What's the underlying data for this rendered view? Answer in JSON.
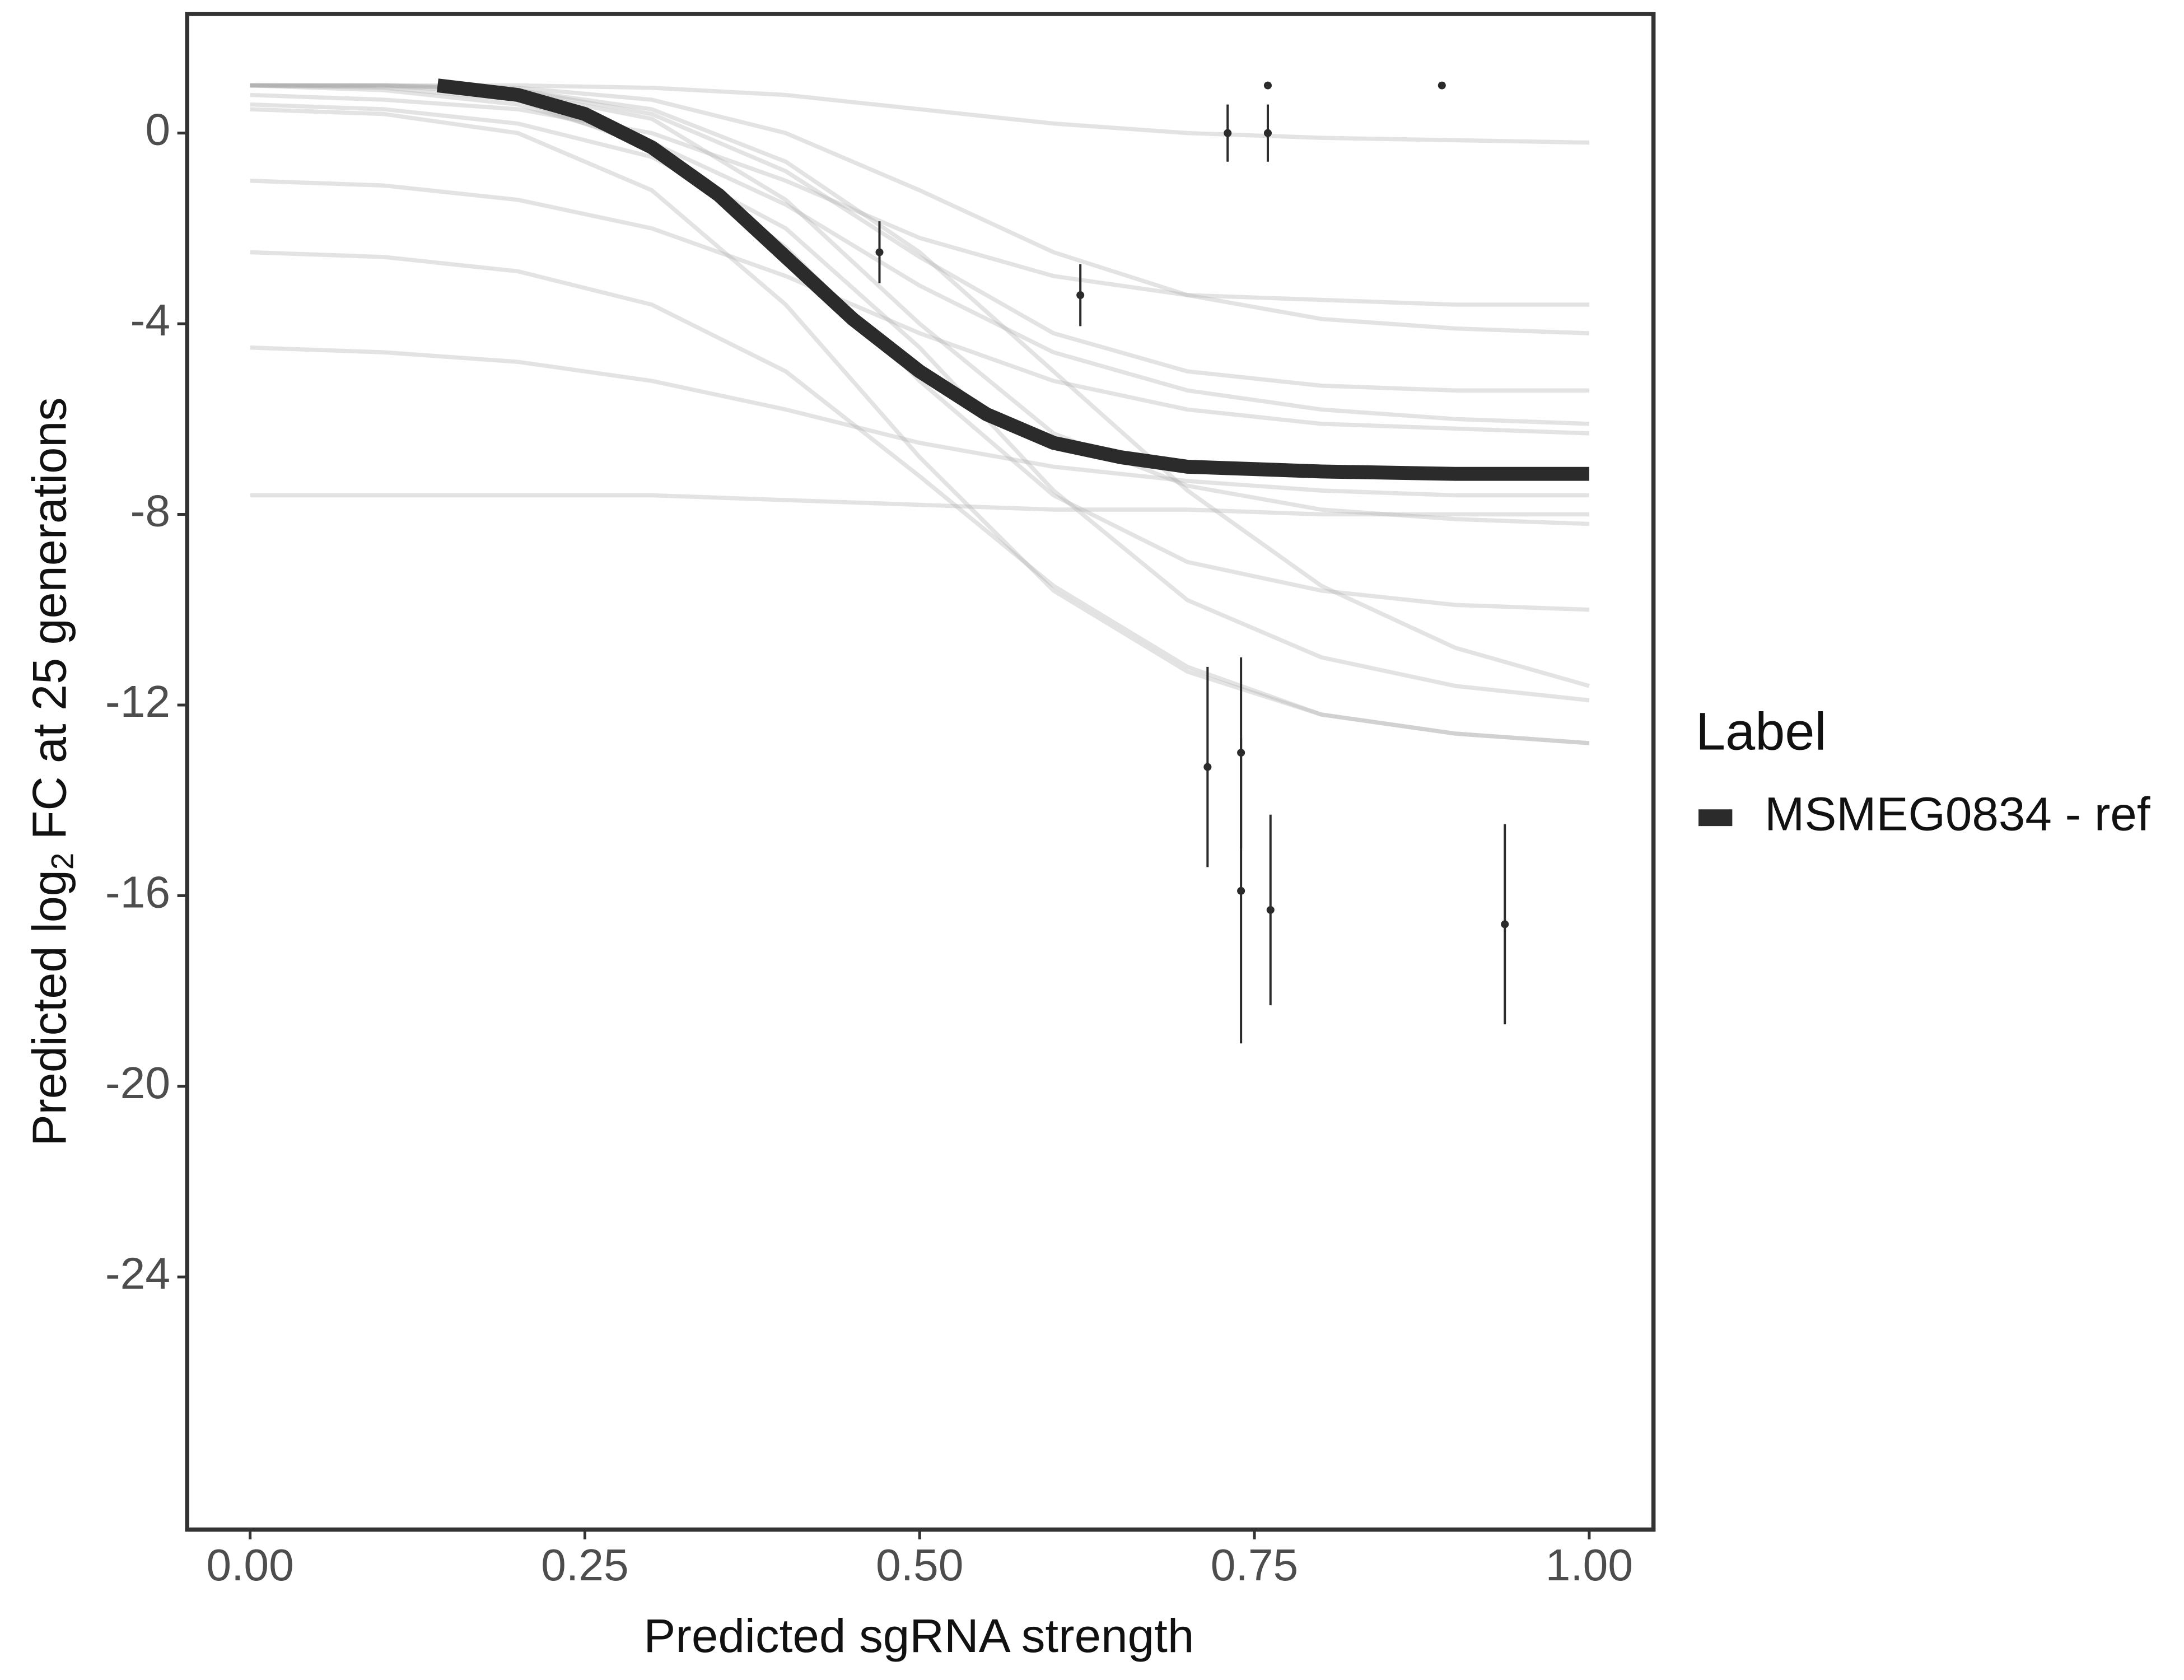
{
  "chart_data": {
    "type": "scatter",
    "xlabel": "Predicted sgRNA strength",
    "ylabel": [
      "Predicted  log",
      "2",
      " FC at 25 generations"
    ],
    "legend_title": "Label",
    "xlim": [
      -0.047,
      1.048
    ],
    "ylim": [
      -29.3,
      2.5
    ],
    "xticks": [
      {
        "value": 0,
        "label": "0.00"
      },
      {
        "value": 0.25,
        "label": "0.25"
      },
      {
        "value": 0.5,
        "label": "0.50"
      },
      {
        "value": 0.75,
        "label": "0.75"
      },
      {
        "value": 1,
        "label": "1.00"
      }
    ],
    "yticks": [
      -24,
      -20,
      -16,
      -12,
      -8,
      -4,
      0
    ],
    "grid": false,
    "draws": {
      "color": "#b0b0b0",
      "x": [
        0,
        0.1,
        0.2,
        0.3,
        0.4,
        0.5,
        0.6,
        0.7,
        0.8,
        0.9,
        1
      ],
      "values": [
        [
          1,
          0.9,
          0.6,
          -0.2,
          -1.5,
          -3.2,
          -4.6,
          -5.4,
          -5.8,
          -6,
          -6.1
        ],
        [
          1,
          1,
          0.9,
          0.4,
          -0.8,
          -2.6,
          -4.2,
          -5,
          -5.3,
          -5.4,
          -5.4
        ],
        [
          1,
          0.95,
          0.7,
          -0.3,
          -2.4,
          -5.2,
          -7.6,
          -9,
          -9.6,
          -9.9,
          -10
        ],
        [
          0.8,
          0.7,
          0.5,
          0,
          -1,
          -2.2,
          -3,
          -3.4,
          -3.5,
          -3.6,
          -3.6
        ],
        [
          1,
          1,
          0.95,
          0.7,
          0,
          -1.2,
          -2.5,
          -3.4,
          -3.9,
          -4.1,
          -4.2
        ],
        [
          0.6,
          0.5,
          0.2,
          -0.5,
          -2,
          -4.5,
          -7.5,
          -9.8,
          -11,
          -11.6,
          -11.9
        ],
        [
          1,
          0.98,
          0.85,
          0.3,
          -1.4,
          -4,
          -6.3,
          -7.4,
          -7.9,
          -8.1,
          -8.2
        ],
        [
          -1,
          -1.1,
          -1.4,
          -2,
          -3,
          -4.2,
          -5.2,
          -5.8,
          -6.1,
          -6.2,
          -6.3
        ],
        [
          1,
          1,
          0.9,
          0.5,
          -0.6,
          -2.5,
          -5,
          -7.5,
          -9.5,
          -10.8,
          -11.6
        ],
        [
          -2.5,
          -2.6,
          -2.9,
          -3.6,
          -5,
          -7.2,
          -9.5,
          -11.2,
          -12.2,
          -12.6,
          -12.8
        ],
        [
          1,
          1,
          1,
          0.95,
          0.8,
          0.5,
          0.2,
          0,
          -0.1,
          -0.15,
          -0.2
        ],
        [
          0.5,
          0.4,
          0,
          -1.2,
          -3.6,
          -6.8,
          -9.6,
          -11.3,
          -12.2,
          -12.6,
          -12.8
        ],
        [
          -4.5,
          -4.6,
          -4.8,
          -5.2,
          -5.8,
          -6.5,
          -7,
          -7.3,
          -7.5,
          -7.6,
          -7.6
        ],
        [
          -7.6,
          -7.6,
          -7.6,
          -7.6,
          -7.7,
          -7.8,
          -7.9,
          -7.9,
          -8,
          -8,
          -8
        ]
      ]
    },
    "series": [
      {
        "name": "MSMEG0834 - ref",
        "color": "#2b2b2b",
        "x": [
          0.14,
          0.2,
          0.25,
          0.3,
          0.35,
          0.4,
          0.45,
          0.5,
          0.55,
          0.6,
          0.65,
          0.7,
          0.8,
          0.9,
          1.0
        ],
        "values": [
          1.0,
          0.8,
          0.4,
          -0.3,
          -1.3,
          -2.6,
          -3.9,
          -5.0,
          -5.9,
          -6.5,
          -6.8,
          -7.0,
          -7.1,
          -7.15,
          -7.15
        ]
      }
    ],
    "points": {
      "color": "#2b2b2b",
      "x": [
        0.47,
        0.62,
        0.73,
        0.76,
        0.76,
        0.89,
        0.715,
        0.74,
        0.74,
        0.762,
        0.937
      ],
      "values": [
        -2.5,
        -3.4,
        0,
        0,
        1.0,
        1.0,
        -13.3,
        -13.0,
        -15.9,
        -16.3,
        -16.6
      ],
      "errors": [
        0.65,
        0.65,
        0.6,
        0.6,
        0,
        0,
        2.1,
        2.0,
        3.2,
        2.0,
        2.1
      ]
    }
  }
}
